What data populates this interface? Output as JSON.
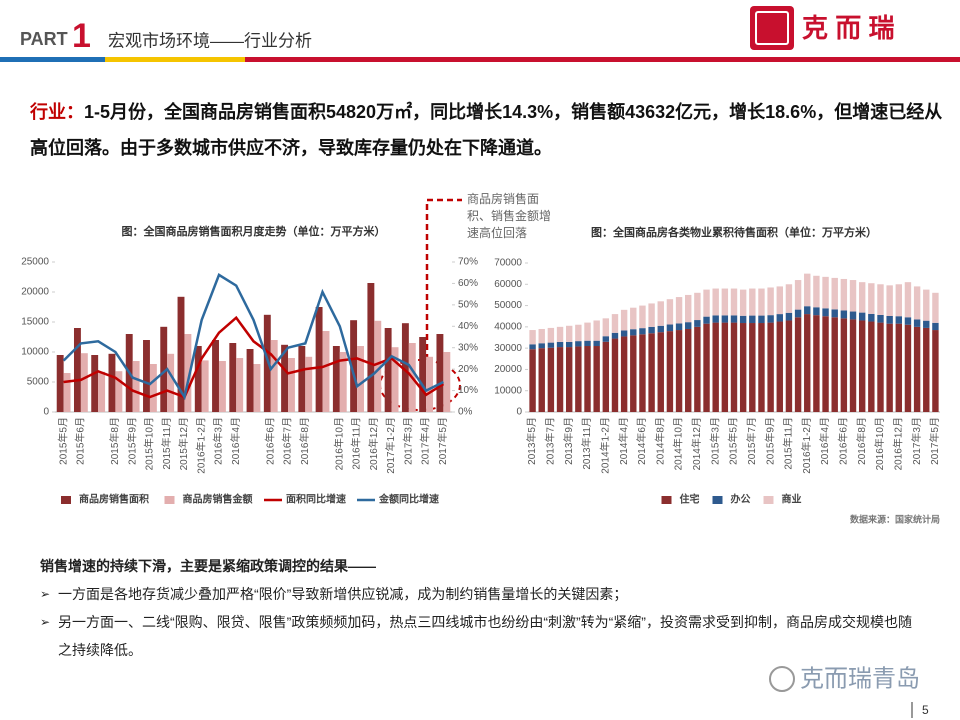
{
  "header": {
    "part": "PART",
    "number": "1",
    "title": "宏观市场环境——行业分析",
    "brand": "克 而 瑞"
  },
  "intro": {
    "key": "行业：",
    "text": "1-5月份，全国商品房销售面积54820万㎡，同比增长14.3%，销售额43632亿元，增长18.6%，但增速已经从高位回落。由于多数城市供应不济，导致库存量仍处在下降通道。"
  },
  "chart_data": [
    {
      "type": "bar",
      "title": "图：全国商品房销售面积月度走势（单位：万平方米）",
      "categories": [
        "2015年5月",
        "2015年6月",
        null,
        "2015年8月",
        "2015年9月",
        "2015年10月",
        "2015年11月",
        "2015年12月",
        "2016年1-2月",
        "2016年3月",
        "2016年4月",
        null,
        "2016年6月",
        "2016年7月",
        "2016年8月",
        null,
        "2016年10月",
        "2016年11月",
        "2016年12月",
        "2017年1-2月",
        "2017年3月",
        "2017年4月",
        "2017年5月"
      ],
      "series": [
        {
          "name": "商品房销售面积",
          "type": "bar",
          "color": "#8b2e2e",
          "values": [
            9500,
            14000,
            9500,
            9700,
            13000,
            12000,
            14200,
            19200,
            11000,
            12000,
            11500,
            10500,
            16200,
            11200,
            11000,
            17500,
            11000,
            15300,
            21500,
            14000,
            14800,
            12500,
            13000
          ]
        },
        {
          "name": "商品房销售金额",
          "type": "bar",
          "color": "#e3aeae",
          "values": [
            6500,
            9800,
            6700,
            6800,
            8500,
            8000,
            9700,
            13000,
            8600,
            8500,
            9000,
            8000,
            12000,
            9000,
            9200,
            13500,
            10000,
            11000,
            15200,
            10800,
            11500,
            9200,
            10000
          ]
        },
        {
          "name": "面积同比增速",
          "type": "line",
          "axis": "y2",
          "color": "#c00000",
          "values": [
            14,
            15,
            19,
            16,
            10,
            7,
            10,
            7,
            25,
            37,
            44,
            33,
            27,
            18,
            20,
            21,
            24,
            25,
            22,
            25,
            18,
            8,
            13
          ]
        },
        {
          "name": "金额同比增速",
          "type": "line",
          "axis": "y2",
          "color": "#2e6a9e",
          "values": [
            24,
            32,
            33,
            28,
            16,
            13,
            20,
            7,
            43,
            64,
            59,
            43,
            20,
            30,
            32,
            56,
            40,
            12,
            18,
            26,
            22,
            10,
            14
          ]
        }
      ],
      "ylim": [
        0,
        25000
      ],
      "yticks": [
        0,
        5000,
        10000,
        15000,
        20000,
        25000
      ],
      "y2lim": [
        0,
        70
      ],
      "y2ticks": [
        {
          "value": 0,
          "label": "0%"
        },
        {
          "value": 10,
          "label": "10%"
        },
        {
          "value": 20,
          "label": "20%"
        },
        {
          "value": 30,
          "label": "30%"
        },
        {
          "value": 40,
          "label": "40%"
        },
        {
          "value": 50,
          "label": "50%"
        },
        {
          "value": 60,
          "label": "60%"
        },
        {
          "value": 70,
          "label": "70%"
        }
      ],
      "grid": false,
      "legend": "bottom",
      "annotation": [
        "商品房销售面",
        "积、销售金额增",
        "速高位回落"
      ]
    },
    {
      "type": "stacked_bar",
      "title": "图：全国商品房各类物业累积待售面积（单位：万平方米）",
      "categories": [
        "2013年5月",
        null,
        "2013年7月",
        null,
        "2013年9月",
        null,
        "2013年11月",
        null,
        "2014年1-2月",
        null,
        "2014年4月",
        null,
        "2014年6月",
        null,
        "2014年8月",
        null,
        "2014年10月",
        null,
        "2014年12月",
        null,
        "2015年3月",
        null,
        "2015年5月",
        null,
        "2015年7月",
        null,
        "2015年9月",
        null,
        "2015年11月",
        null,
        "2016年1-2月",
        null,
        "2016年4月",
        null,
        "2016年6月",
        null,
        "2016年8月",
        null,
        "2016年10月",
        null,
        "2016年12月",
        null,
        "2017年3月",
        null,
        "2017年5月"
      ],
      "series": [
        {
          "name": "住宅",
          "color": "#8b2e2e",
          "values": [
            29500,
            30000,
            30200,
            30500,
            30500,
            30800,
            31000,
            31000,
            33000,
            34500,
            35500,
            36000,
            36500,
            37000,
            37500,
            38000,
            38500,
            39000,
            40000,
            41500,
            42000,
            42000,
            42000,
            41800,
            41800,
            41800,
            42000,
            42500,
            43000,
            44500,
            46000,
            45500,
            45000,
            44500,
            44000,
            43500,
            43000,
            42500,
            42000,
            41500,
            41500,
            41000,
            40000,
            39500,
            38500
          ]
        },
        {
          "name": "办公",
          "color": "#2e5a8e",
          "values": [
            2300,
            2300,
            2400,
            2400,
            2400,
            2500,
            2500,
            2500,
            2600,
            2700,
            2800,
            2900,
            2900,
            3000,
            3000,
            3100,
            3100,
            3200,
            3200,
            3300,
            3400,
            3400,
            3400,
            3400,
            3500,
            3500,
            3500,
            3500,
            3600,
            3600,
            3700,
            3700,
            3700,
            3700,
            3700,
            3700,
            3700,
            3600,
            3600,
            3600,
            3500,
            3500,
            3500,
            3400,
            3400
          ]
        },
        {
          "name": "商业",
          "color": "#e8c4c4",
          "values": [
            6700,
            6700,
            6900,
            7100,
            7600,
            7700,
            8500,
            9500,
            8400,
            8800,
            9700,
            10100,
            10600,
            11000,
            11500,
            11900,
            12400,
            12800,
            12800,
            12700,
            12600,
            12600,
            12600,
            12300,
            12700,
            12700,
            13000,
            13000,
            13400,
            13900,
            15300,
            14800,
            14800,
            14800,
            14800,
            14800,
            14300,
            14400,
            14400,
            14400,
            15000,
            16500,
            15500,
            14600,
            14100
          ]
        }
      ],
      "ylim": [
        0,
        70000
      ],
      "yticks": [
        0,
        10000,
        20000,
        30000,
        40000,
        50000,
        60000,
        70000
      ],
      "grid": false,
      "legend": "bottom",
      "source": "数据来源：国家统计局"
    }
  ],
  "conclusion": {
    "heading": "销售增速的持续下滑，主要是紧缩政策调控的结果——",
    "points": [
      "一方面是各地存货减少叠加严格“限价”导致新增供应锐减，成为制约销售量增长的关键因素；",
      "另一方面一、二线“限购、限贷、限售”政策频频加码，热点三四线城市也纷纷由“刺激”转为“紧缩”，投资需求受到抑制，商品房成交规模也随之持续降低。"
    ]
  },
  "footer": {
    "watermark": "克而瑞青岛",
    "page": "5"
  }
}
